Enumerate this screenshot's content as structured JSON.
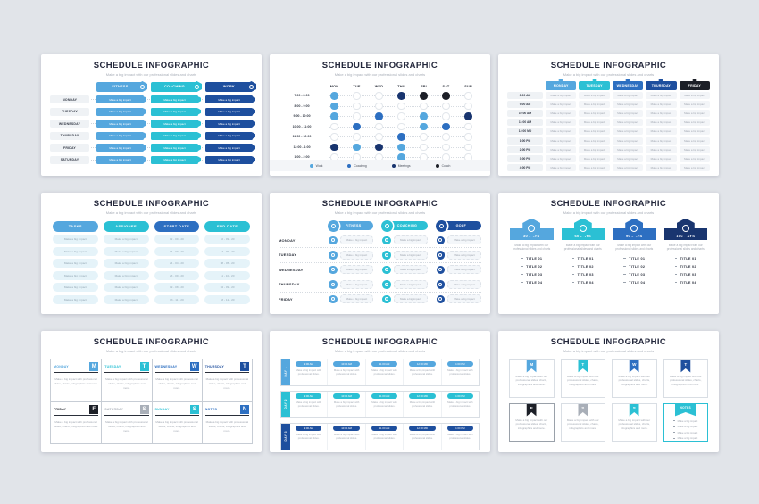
{
  "palette": {
    "lightBlue": "#55A7DE",
    "cyan": "#2BC0D4",
    "blue": "#2D6FC1",
    "darkBlue": "#1E4F9E",
    "navy": "#19356F",
    "black": "#1C1F27",
    "gray": "#A9AFB8",
    "emptyDot": "#E2E6EB",
    "legendBg": "#F3F5F8",
    "borderCyan": "#2BC0D4",
    "borderGray": "#9AA1AA"
  },
  "common": {
    "title": "SCHEDULE INFOGRAPHIC",
    "subtitle": "Make a big impact with our professional slides and charts"
  },
  "slide1": {
    "bar_text": "Make a big impact",
    "days": [
      "MONDAY",
      "TUESDAY",
      "WEDNESDAY",
      "THURSDAY",
      "FRIDAY",
      "SATURDAY"
    ],
    "columns": [
      {
        "label": "FITNESS",
        "color": "lightBlue",
        "icon": "dumbbell-icon"
      },
      {
        "label": "COACHING",
        "color": "cyan",
        "icon": "whistle-icon"
      },
      {
        "label": "WORK",
        "color": "darkBlue",
        "icon": "briefcase-icon"
      }
    ]
  },
  "slide2": {
    "days": [
      "MON",
      "TUE",
      "WED",
      "THU",
      "FRI",
      "SAT",
      "SUN"
    ],
    "times": [
      "7:00 - 8:00",
      "8:00 - 9:00",
      "9:00 - 10:00",
      "10:00 - 11:00",
      "11:00 - 12:00",
      "12:00 - 1:00",
      "1:00 - 2:00"
    ],
    "grid": [
      [
        "lightBlue",
        "",
        "",
        "navy",
        "black",
        "black",
        ""
      ],
      [
        "lightBlue",
        "",
        "",
        "",
        "",
        "",
        ""
      ],
      [
        "lightBlue",
        "",
        "blue",
        "",
        "lightBlue",
        "",
        "navy"
      ],
      [
        "",
        "blue",
        "",
        "",
        "lightBlue",
        "blue",
        ""
      ],
      [
        "",
        "",
        "",
        "blue",
        "",
        "",
        ""
      ],
      [
        "navy",
        "lightBlue",
        "navy",
        "lightBlue",
        "",
        "",
        ""
      ],
      [
        "",
        "",
        "",
        "lightBlue",
        "",
        "",
        ""
      ]
    ],
    "legend": [
      {
        "label": "Work",
        "color": "lightBlue"
      },
      {
        "label": "Coaching",
        "color": "blue"
      },
      {
        "label": "Meetings",
        "color": "navy"
      },
      {
        "label": "Coach",
        "color": "black"
      }
    ]
  },
  "slide3": {
    "cell_text": "Make a big impact",
    "times": [
      "8:00 AM",
      "9:00 AM",
      "10:00 AM",
      "11:00 AM",
      "12:00 MD",
      "1:00 PM",
      "2:00 PM",
      "3:00 PM",
      "4:00 PM"
    ],
    "columns": [
      {
        "label": "MONDAY",
        "color": "lightBlue"
      },
      {
        "label": "TUESDAY",
        "color": "cyan"
      },
      {
        "label": "WEDNESDAY",
        "color": "blue"
      },
      {
        "label": "THURSDAY",
        "color": "darkBlue"
      },
      {
        "label": "FRIDAY",
        "color": "black"
      }
    ]
  },
  "slide4": {
    "headers": [
      {
        "label": "TASKS",
        "color": "lightBlue"
      },
      {
        "label": "ASSIGNEE",
        "color": "cyan"
      },
      {
        "label": "START DATE",
        "color": "blue"
      },
      {
        "label": "END DATE",
        "color": "cyan"
      }
    ],
    "rows": [
      [
        "Make a big impact",
        "Make a big impact",
        "02 - 09 - 20",
        "10 - 09 - 20"
      ],
      [
        "Make a big impact",
        "Make a big impact",
        "04 - 09 - 20",
        "17 - 09 - 20"
      ],
      [
        "Make a big impact",
        "Make a big impact",
        "24 - 04 - 20",
        "08 - 05 - 20"
      ],
      [
        "Make a big impact",
        "Make a big impact",
        "23 - 09 - 20",
        "11 - 10 - 20"
      ],
      [
        "Make a big impact",
        "Make a big impact",
        "09 - 08 - 20",
        "04 - 09 - 20"
      ],
      [
        "Make a big impact",
        "Make a big impact",
        "03 - 11 - 20",
        "18 - 12 - 20"
      ]
    ]
  },
  "slide5": {
    "cell_text": "Make a big impact",
    "days": [
      "MONDAY",
      "TUESDAY",
      "WEDNESDAY",
      "THURSDAY",
      "FRIDAY"
    ],
    "columns": [
      {
        "label": "FITNESS",
        "color": "lightBlue",
        "icon": "dumbbell-icon"
      },
      {
        "label": "COACHING",
        "color": "cyan",
        "icon": "whistle-icon"
      },
      {
        "label": "GOLF",
        "color": "darkBlue",
        "icon": "golf-ball-icon"
      }
    ]
  },
  "slide6": {
    "body": "Make a big impact with our professional slides and charts",
    "items": [
      "TITLE 01",
      "TITLE 02",
      "TITLE 03",
      "TITLE 04"
    ],
    "cards": [
      {
        "label": "30 DAYS",
        "color": "lightBlue",
        "icon": "calendar-icon"
      },
      {
        "label": "60 DAYS",
        "color": "cyan",
        "icon": "stopwatch-icon"
      },
      {
        "label": "90 DAYS",
        "color": "blue",
        "icon": "user-icon"
      },
      {
        "label": "100 DAYS",
        "color": "navy",
        "icon": "target-icon"
      }
    ]
  },
  "slide7": {
    "body": "Make a big impact with professional slides, charts, infographics and more.",
    "cells": [
      {
        "day": "MONDAY",
        "letter": "M",
        "color": "lightBlue"
      },
      {
        "day": "TUESDAY",
        "letter": "T",
        "color": "cyan"
      },
      {
        "day": "WEDNESDAY",
        "letter": "W",
        "color": "blue"
      },
      {
        "day": "THURSDAY",
        "letter": "T",
        "color": "darkBlue"
      },
      {
        "day": "FRIDAY",
        "letter": "F",
        "color": "black"
      },
      {
        "day": "SATURDAY",
        "letter": "S",
        "color": "gray"
      },
      {
        "day": "SUNDAY",
        "letter": "S",
        "color": "cyan"
      },
      {
        "day": "NOTES",
        "letter": "N",
        "color": "blue"
      }
    ]
  },
  "slide8": {
    "body": "Make a big impact with professional slides.",
    "rows": [
      {
        "label": "DAY 1",
        "color": "lightBlue",
        "slots": [
          "9:00 AM",
          "10:00 AM",
          "11:00 AM",
          "12:00 MD",
          "1:00 PM"
        ]
      },
      {
        "label": "DAY 2",
        "color": "cyan",
        "slots": [
          "9:00 AM",
          "10:00 AM",
          "11:00 AM",
          "12:00 MD",
          "1:00 PM"
        ]
      },
      {
        "label": "DAY 3",
        "color": "darkBlue",
        "slots": [
          "9:00 AM",
          "10:00 AM",
          "11:00 AM",
          "12:00 MD",
          "1:00 PM"
        ]
      }
    ]
  },
  "slide9": {
    "body": "Make a big impact with our professional slides, charts, infographics and more.",
    "note_items": [
      "Make a big impact",
      "Make a big impact",
      "Make a big impact",
      "Make a big impact"
    ],
    "cards": [
      {
        "letter": "M",
        "color": "lightBlue"
      },
      {
        "letter": "T",
        "color": "cyan"
      },
      {
        "letter": "W",
        "color": "blue"
      },
      {
        "letter": "T",
        "color": "darkBlue"
      },
      {
        "letter": "F",
        "color": "black",
        "border": "borderGray"
      },
      {
        "letter": "S",
        "color": "gray"
      },
      {
        "letter": "S",
        "color": "cyan"
      },
      {
        "label": "NOTES",
        "color": "cyan",
        "border": "borderCyan",
        "notes": true
      }
    ]
  }
}
